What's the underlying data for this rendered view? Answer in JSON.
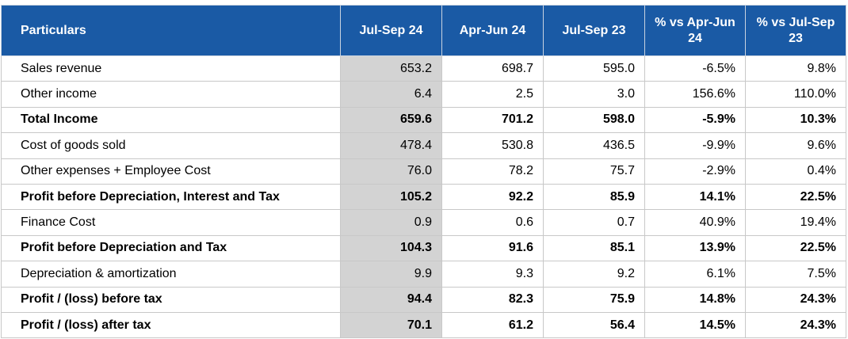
{
  "table": {
    "headers": [
      "Particulars",
      "Jul-Sep 24",
      "Apr-Jun 24",
      "Jul-Sep 23",
      "% vs Apr-Jun 24",
      "% vs Jul-Sep 23"
    ],
    "rows": [
      {
        "label": "Sales revenue",
        "bold": false,
        "values": [
          "653.2",
          "698.7",
          "595.0",
          "-6.5%",
          "9.8%"
        ]
      },
      {
        "label": "Other income",
        "bold": false,
        "values": [
          "6.4",
          "2.5",
          "3.0",
          "156.6%",
          "110.0%"
        ]
      },
      {
        "label": "Total Income",
        "bold": true,
        "values": [
          "659.6",
          "701.2",
          "598.0",
          "-5.9%",
          "10.3%"
        ]
      },
      {
        "label": "Cost of goods sold",
        "bold": false,
        "values": [
          "478.4",
          "530.8",
          "436.5",
          "-9.9%",
          "9.6%"
        ]
      },
      {
        "label": "Other expenses + Employee Cost",
        "bold": false,
        "values": [
          "76.0",
          "78.2",
          "75.7",
          "-2.9%",
          "0.4%"
        ]
      },
      {
        "label": "Profit before Depreciation, Interest and Tax",
        "bold": true,
        "values": [
          "105.2",
          "92.2",
          "85.9",
          "14.1%",
          "22.5%"
        ]
      },
      {
        "label": "Finance Cost",
        "bold": false,
        "values": [
          "0.9",
          "0.6",
          "0.7",
          "40.9%",
          "19.4%"
        ]
      },
      {
        "label": "Profit before Depreciation and Tax",
        "bold": true,
        "values": [
          "104.3",
          "91.6",
          "85.1",
          "13.9%",
          "22.5%"
        ]
      },
      {
        "label": "Depreciation & amortization",
        "bold": false,
        "values": [
          "9.9",
          "9.3",
          "9.2",
          "6.1%",
          "7.5%"
        ]
      },
      {
        "label": "Profit / (loss) before tax",
        "bold": true,
        "values": [
          "94.4",
          "82.3",
          "75.9",
          "14.8%",
          "24.3%"
        ]
      },
      {
        "label": "Profit / (loss) after tax",
        "bold": true,
        "values": [
          "70.1",
          "61.2",
          "56.4",
          "14.5%",
          "24.3%"
        ]
      }
    ]
  },
  "colors": {
    "header_bg": "#1a5aa5",
    "header_text": "#ffffff",
    "highlight_column": "#d3d3d3",
    "grid": "#c8c8c8"
  }
}
